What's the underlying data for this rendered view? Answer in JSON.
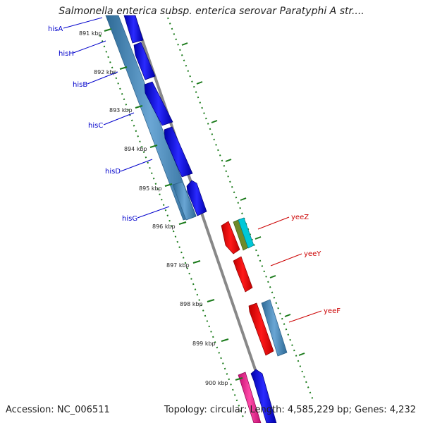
{
  "title": "Salmonella enterica subsp. enterica serovar Paratyphi A str....",
  "footer": {
    "accession": "Accession: NC_006511",
    "summary": "Topology: circular; Length: 4,585,229 bp; Genes: 4,232"
  },
  "ticks": [
    "891 kbp",
    "892 kbp",
    "893 kbp",
    "894 kbp",
    "895 kbp",
    "896 kbp",
    "897 kbp",
    "898 kbp",
    "899 kbp",
    "900 kbp"
  ],
  "genes_left": [
    "hisA",
    "hisH",
    "hisB",
    "hisC",
    "hisD",
    "hisG"
  ],
  "genes_right": [
    "yeeZ",
    "yeeY",
    "yeeF"
  ],
  "colors": {
    "left_label": "#0000cc",
    "right_label": "#cc0000",
    "blue_gene": "#0000ee",
    "steel_gene": "#4a88b8",
    "red_gene": "#ee0000",
    "olive_gene": "#6f8a2a",
    "cyan_gene": "#00c8d8",
    "pink_gene": "#ee2288",
    "backbone": "#888888",
    "tick_mark": "#1a7a1a"
  }
}
